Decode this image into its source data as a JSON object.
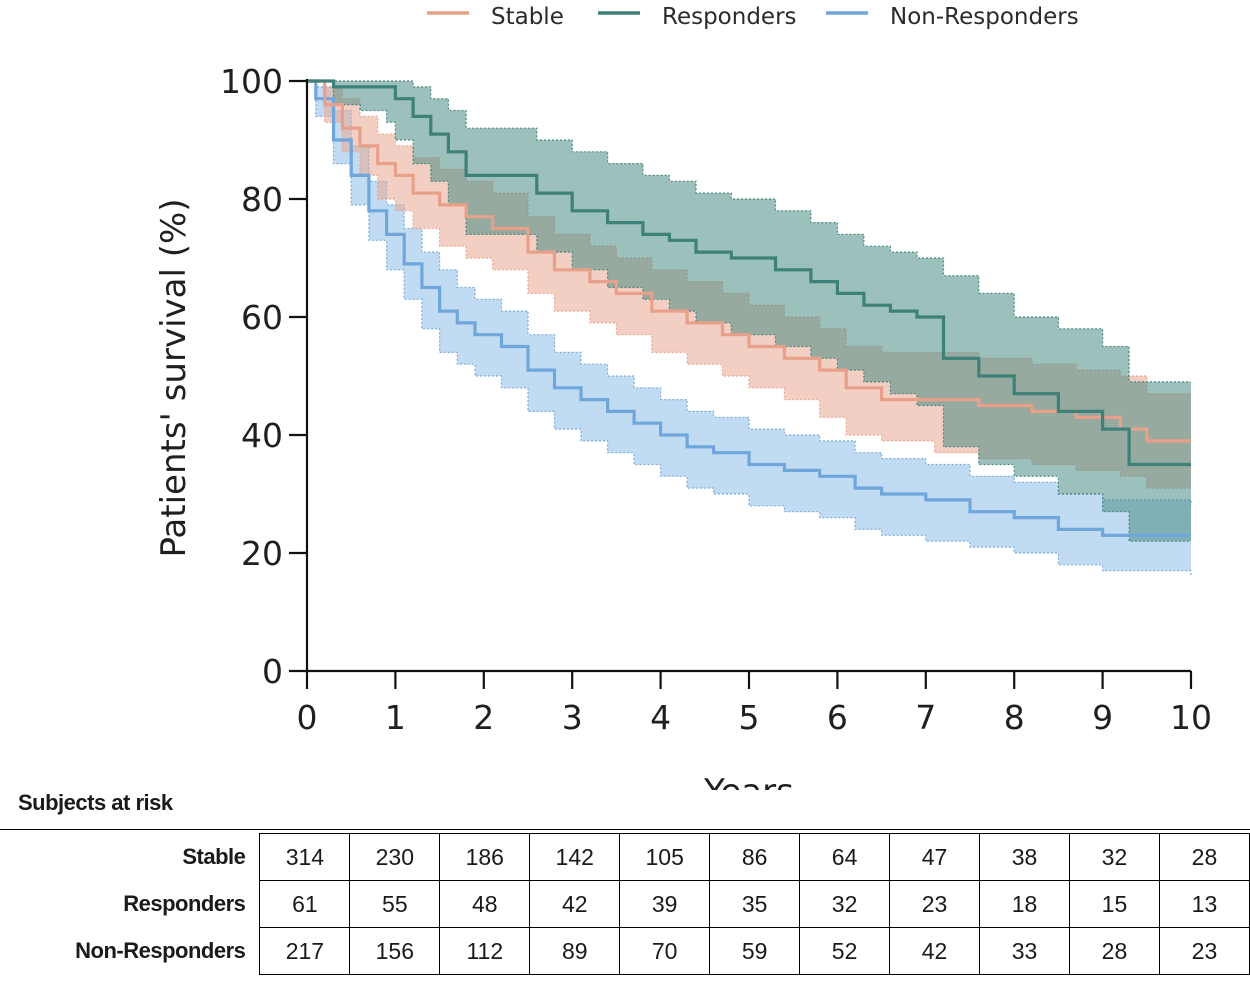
{
  "chart_data": {
    "type": "line",
    "step": true,
    "ylabel": "Patients' survival (%)",
    "xlabel": "Years",
    "xlim": [
      0,
      10
    ],
    "ylim": [
      0,
      100
    ],
    "xticks": [
      "0",
      "1",
      "2",
      "3",
      "4",
      "5",
      "6",
      "7",
      "8",
      "9",
      "10"
    ],
    "yticks": [
      "0",
      "20",
      "40",
      "60",
      "80",
      "100"
    ],
    "legend_position": "top",
    "series": [
      {
        "name": "Stable",
        "color": "#e8a08a",
        "band_color": "#e8a890",
        "x": [
          0,
          0.2,
          0.4,
          0.6,
          0.8,
          1.0,
          1.2,
          1.5,
          1.8,
          2.1,
          2.5,
          2.8,
          3.2,
          3.5,
          3.9,
          4.3,
          4.7,
          5.0,
          5.4,
          5.8,
          6.1,
          6.5,
          7.1,
          7.6,
          8.2,
          8.7,
          9.2,
          9.5,
          10.0
        ],
        "y": [
          100,
          96,
          92,
          89,
          86,
          84,
          81,
          79,
          77,
          75,
          71,
          68,
          66,
          64,
          61,
          59,
          57,
          55,
          53,
          51,
          48,
          46,
          46,
          45,
          44,
          43,
          41,
          39,
          39
        ],
        "lower": [
          100,
          93,
          88,
          84,
          80,
          78,
          75,
          72,
          70,
          68,
          64,
          61,
          59,
          57,
          54,
          52,
          50,
          48,
          46,
          43,
          40,
          39,
          37,
          36,
          35,
          34,
          33,
          31,
          31
        ],
        "upper": [
          100,
          99,
          97,
          94,
          91,
          89,
          87,
          85,
          83,
          81,
          77,
          74,
          72,
          70,
          68,
          66,
          64,
          62,
          60,
          58,
          55,
          54,
          54,
          53,
          52,
          51,
          50,
          47,
          47
        ]
      },
      {
        "name": "Responders",
        "color": "#3e8178",
        "band_color": "#4a8d84",
        "x": [
          0,
          0.3,
          0.6,
          0.9,
          1.0,
          1.2,
          1.4,
          1.6,
          1.8,
          2.3,
          2.6,
          3.0,
          3.4,
          3.8,
          4.1,
          4.4,
          4.8,
          5.3,
          5.7,
          6.0,
          6.3,
          6.6,
          6.9,
          7.2,
          7.6,
          8.0,
          8.5,
          9.0,
          9.3,
          10.0
        ],
        "y": [
          100,
          99,
          99,
          99,
          97,
          94,
          91,
          88,
          84,
          84,
          81,
          78,
          76,
          74,
          73,
          71,
          70,
          68,
          66,
          64,
          62,
          61,
          60,
          53,
          50,
          47,
          44,
          41,
          35,
          35
        ],
        "lower": [
          100,
          96,
          95,
          93,
          90,
          86,
          83,
          79,
          74,
          74,
          71,
          68,
          65,
          63,
          61,
          59,
          57,
          55,
          53,
          51,
          49,
          47,
          45,
          38,
          35,
          33,
          30,
          27,
          22,
          22
        ],
        "upper": [
          100,
          100,
          100,
          100,
          100,
          99,
          97,
          95,
          92,
          92,
          90,
          88,
          86,
          84,
          83,
          81,
          80,
          78,
          76,
          74,
          72,
          71,
          70,
          67,
          64,
          60,
          58,
          55,
          49,
          49
        ]
      },
      {
        "name": "Non-Responders",
        "color": "#6fa6dc",
        "band_color": "#8cbde8",
        "x": [
          0,
          0.1,
          0.3,
          0.5,
          0.7,
          0.9,
          1.1,
          1.3,
          1.5,
          1.7,
          1.9,
          2.2,
          2.5,
          2.8,
          3.1,
          3.4,
          3.7,
          4.0,
          4.3,
          4.6,
          5.0,
          5.4,
          5.8,
          6.2,
          6.5,
          7.0,
          7.5,
          8.0,
          8.5,
          9.0,
          10.0
        ],
        "y": [
          100,
          97,
          90,
          84,
          78,
          74,
          69,
          65,
          61,
          59,
          57,
          55,
          51,
          48,
          46,
          44,
          42,
          40,
          38,
          37,
          35,
          34,
          33,
          31,
          30,
          29,
          27,
          26,
          24,
          23,
          23
        ],
        "lower": [
          100,
          94,
          86,
          79,
          73,
          68,
          63,
          58,
          54,
          52,
          50,
          48,
          44,
          41,
          39,
          37,
          35,
          33,
          31,
          30,
          28,
          27,
          26,
          24,
          23,
          22,
          21,
          20,
          18,
          17,
          16
        ],
        "upper": [
          100,
          99,
          95,
          89,
          83,
          79,
          75,
          71,
          68,
          65,
          63,
          61,
          57,
          54,
          52,
          50,
          48,
          46,
          44,
          43,
          41,
          40,
          39,
          37,
          36,
          35,
          33,
          32,
          30,
          29,
          28
        ]
      }
    ],
    "risk_table": {
      "title": "Subjects at risk",
      "rows": [
        {
          "label": "Stable",
          "values": [
            314,
            230,
            186,
            142,
            105,
            86,
            64,
            47,
            38,
            32,
            28
          ]
        },
        {
          "label": "Responders",
          "values": [
            61,
            55,
            48,
            42,
            39,
            35,
            32,
            23,
            18,
            15,
            13
          ]
        },
        {
          "label": "Non-Responders",
          "values": [
            217,
            156,
            112,
            89,
            70,
            59,
            52,
            42,
            33,
            28,
            23
          ]
        }
      ]
    }
  }
}
